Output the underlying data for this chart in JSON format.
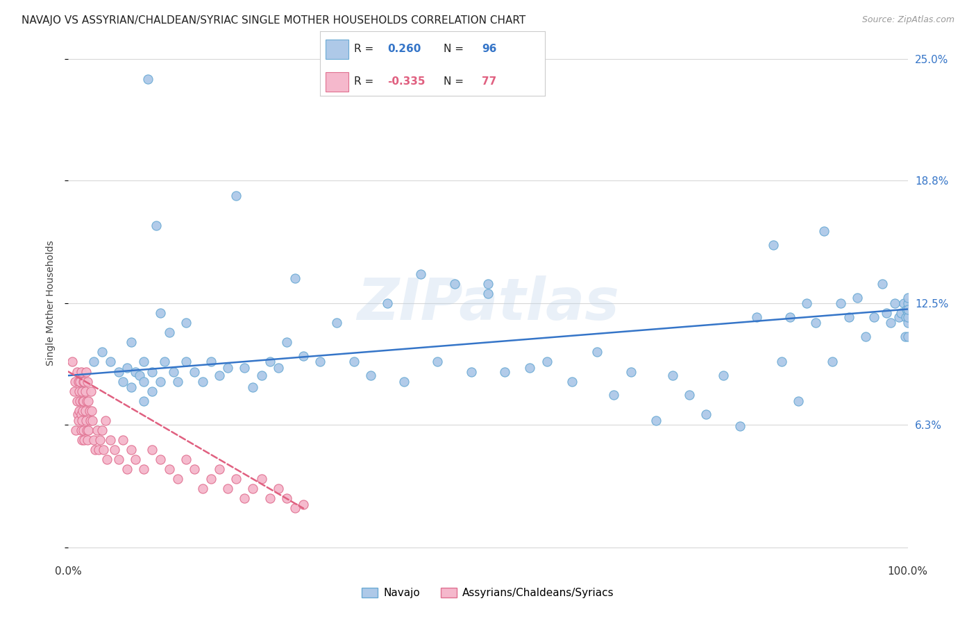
{
  "title": "NAVAJO VS ASSYRIAN/CHALDEAN/SYRIAC SINGLE MOTHER HOUSEHOLDS CORRELATION CHART",
  "source": "Source: ZipAtlas.com",
  "ylabel": "Single Mother Households",
  "xlabel": "",
  "xlim": [
    0,
    1.0
  ],
  "ylim": [
    -0.005,
    0.255
  ],
  "yticks": [
    0.0,
    0.063,
    0.125,
    0.188,
    0.25
  ],
  "ytick_labels": [
    "",
    "6.3%",
    "12.5%",
    "18.8%",
    "25.0%"
  ],
  "xtick_vals": [
    0,
    1.0
  ],
  "xtick_labels": [
    "0.0%",
    "100.0%"
  ],
  "navajo_color": "#aec9e8",
  "navajo_edge_color": "#6aaad4",
  "assyrian_color": "#f5b8cc",
  "assyrian_edge_color": "#e07090",
  "trend_navajo_color": "#3575c8",
  "trend_assyrian_color": "#e06080",
  "legend_labels": [
    "Navajo",
    "Assyrians/Chaldeans/Syriacs"
  ],
  "R_navajo": 0.26,
  "N_navajo": 96,
  "R_assyrian": -0.335,
  "N_assyrian": 77,
  "watermark": "ZIPatlas",
  "background_color": "#ffffff",
  "grid_color": "#d8d8d8",
  "navajo_x": [
    0.015,
    0.03,
    0.04,
    0.05,
    0.06,
    0.065,
    0.07,
    0.075,
    0.075,
    0.08,
    0.085,
    0.09,
    0.09,
    0.09,
    0.095,
    0.1,
    0.1,
    0.105,
    0.11,
    0.11,
    0.115,
    0.12,
    0.125,
    0.13,
    0.14,
    0.14,
    0.15,
    0.16,
    0.17,
    0.18,
    0.19,
    0.2,
    0.21,
    0.22,
    0.23,
    0.24,
    0.25,
    0.26,
    0.27,
    0.28,
    0.3,
    0.32,
    0.34,
    0.36,
    0.38,
    0.4,
    0.42,
    0.44,
    0.46,
    0.48,
    0.5,
    0.5,
    0.52,
    0.55,
    0.57,
    0.6,
    0.63,
    0.65,
    0.67,
    0.7,
    0.72,
    0.74,
    0.76,
    0.78,
    0.8,
    0.82,
    0.84,
    0.85,
    0.86,
    0.87,
    0.88,
    0.89,
    0.9,
    0.91,
    0.92,
    0.93,
    0.94,
    0.95,
    0.96,
    0.97,
    0.975,
    0.98,
    0.985,
    0.99,
    0.992,
    0.995,
    0.997,
    0.998,
    0.999,
    1.0,
    1.0,
    1.0,
    1.0,
    1.0,
    1.0,
    1.0
  ],
  "navajo_y": [
    0.085,
    0.095,
    0.1,
    0.095,
    0.09,
    0.085,
    0.092,
    0.105,
    0.082,
    0.09,
    0.088,
    0.095,
    0.085,
    0.075,
    0.24,
    0.09,
    0.08,
    0.165,
    0.12,
    0.085,
    0.095,
    0.11,
    0.09,
    0.085,
    0.095,
    0.115,
    0.09,
    0.085,
    0.095,
    0.088,
    0.092,
    0.18,
    0.092,
    0.082,
    0.088,
    0.095,
    0.092,
    0.105,
    0.138,
    0.098,
    0.095,
    0.115,
    0.095,
    0.088,
    0.125,
    0.085,
    0.14,
    0.095,
    0.135,
    0.09,
    0.13,
    0.135,
    0.09,
    0.092,
    0.095,
    0.085,
    0.1,
    0.078,
    0.09,
    0.065,
    0.088,
    0.078,
    0.068,
    0.088,
    0.062,
    0.118,
    0.155,
    0.095,
    0.118,
    0.075,
    0.125,
    0.115,
    0.162,
    0.095,
    0.125,
    0.118,
    0.128,
    0.108,
    0.118,
    0.135,
    0.12,
    0.115,
    0.125,
    0.118,
    0.12,
    0.125,
    0.108,
    0.118,
    0.122,
    0.125,
    0.115,
    0.12,
    0.128,
    0.118,
    0.122,
    0.108
  ],
  "assyrian_x": [
    0.005,
    0.007,
    0.008,
    0.009,
    0.01,
    0.01,
    0.011,
    0.012,
    0.012,
    0.013,
    0.013,
    0.014,
    0.014,
    0.015,
    0.015,
    0.015,
    0.016,
    0.016,
    0.016,
    0.017,
    0.017,
    0.018,
    0.018,
    0.018,
    0.019,
    0.019,
    0.02,
    0.02,
    0.021,
    0.021,
    0.022,
    0.022,
    0.023,
    0.023,
    0.024,
    0.024,
    0.025,
    0.026,
    0.027,
    0.028,
    0.029,
    0.03,
    0.032,
    0.034,
    0.036,
    0.038,
    0.04,
    0.042,
    0.044,
    0.046,
    0.05,
    0.055,
    0.06,
    0.065,
    0.07,
    0.075,
    0.08,
    0.09,
    0.1,
    0.11,
    0.12,
    0.13,
    0.14,
    0.15,
    0.16,
    0.17,
    0.18,
    0.19,
    0.2,
    0.21,
    0.22,
    0.23,
    0.24,
    0.25,
    0.26,
    0.27,
    0.28
  ],
  "assyrian_y": [
    0.095,
    0.08,
    0.085,
    0.06,
    0.09,
    0.075,
    0.068,
    0.085,
    0.065,
    0.08,
    0.07,
    0.085,
    0.075,
    0.06,
    0.09,
    0.068,
    0.065,
    0.08,
    0.055,
    0.075,
    0.07,
    0.085,
    0.06,
    0.075,
    0.055,
    0.085,
    0.07,
    0.08,
    0.065,
    0.09,
    0.06,
    0.075,
    0.055,
    0.085,
    0.06,
    0.075,
    0.07,
    0.065,
    0.08,
    0.07,
    0.065,
    0.055,
    0.05,
    0.06,
    0.05,
    0.055,
    0.06,
    0.05,
    0.065,
    0.045,
    0.055,
    0.05,
    0.045,
    0.055,
    0.04,
    0.05,
    0.045,
    0.04,
    0.05,
    0.045,
    0.04,
    0.035,
    0.045,
    0.04,
    0.03,
    0.035,
    0.04,
    0.03,
    0.035,
    0.025,
    0.03,
    0.035,
    0.025,
    0.03,
    0.025,
    0.02,
    0.022
  ],
  "trend_nav_x0": 0.0,
  "trend_nav_y0": 0.088,
  "trend_nav_x1": 1.0,
  "trend_nav_y1": 0.122,
  "trend_ass_x0": 0.0,
  "trend_ass_y0": 0.09,
  "trend_ass_x1": 0.28,
  "trend_ass_y1": 0.02
}
